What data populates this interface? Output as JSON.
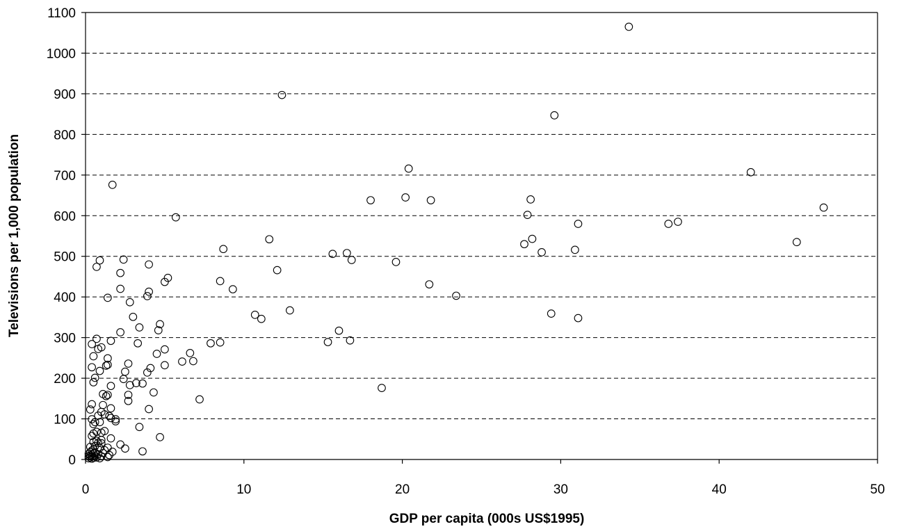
{
  "chart_data": {
    "type": "scatter",
    "xlabel": "GDP per capita (000s US$1995)",
    "ylabel": "Televisions per 1,000 population",
    "xlim": [
      0,
      50
    ],
    "ylim": [
      0,
      1100
    ],
    "xticks": [
      0,
      10,
      20,
      30,
      40,
      50
    ],
    "yticks": [
      0,
      100,
      200,
      300,
      400,
      500,
      600,
      700,
      800,
      900,
      1000,
      1100
    ],
    "grid": "horizontal dashed",
    "marker": "open circle",
    "points": [
      [
        34.3,
        1065
      ],
      [
        12.4,
        897
      ],
      [
        29.6,
        847
      ],
      [
        20.4,
        716
      ],
      [
        42.0,
        707
      ],
      [
        1.7,
        676
      ],
      [
        20.2,
        645
      ],
      [
        28.1,
        640
      ],
      [
        18.0,
        638
      ],
      [
        21.8,
        638
      ],
      [
        46.6,
        620
      ],
      [
        27.9,
        602
      ],
      [
        5.7,
        596
      ],
      [
        31.1,
        580
      ],
      [
        36.8,
        580
      ],
      [
        37.4,
        585
      ],
      [
        11.6,
        542
      ],
      [
        28.2,
        543
      ],
      [
        44.9,
        535
      ],
      [
        27.7,
        530
      ],
      [
        8.7,
        518
      ],
      [
        30.9,
        516
      ],
      [
        28.8,
        510
      ],
      [
        15.6,
        506
      ],
      [
        16.5,
        508
      ],
      [
        16.8,
        491
      ],
      [
        19.6,
        486
      ],
      [
        0.9,
        490
      ],
      [
        2.4,
        492
      ],
      [
        0.7,
        474
      ],
      [
        4.0,
        480
      ],
      [
        12.1,
        466
      ],
      [
        2.2,
        459
      ],
      [
        5.2,
        447
      ],
      [
        5.0,
        437
      ],
      [
        8.5,
        439
      ],
      [
        21.7,
        431
      ],
      [
        2.2,
        420
      ],
      [
        9.3,
        419
      ],
      [
        4.0,
        413
      ],
      [
        3.9,
        402
      ],
      [
        23.4,
        403
      ],
      [
        1.4,
        398
      ],
      [
        2.8,
        387
      ],
      [
        12.9,
        367
      ],
      [
        10.7,
        356
      ],
      [
        11.1,
        346
      ],
      [
        29.4,
        359
      ],
      [
        31.1,
        348
      ],
      [
        3.0,
        351
      ],
      [
        4.7,
        333
      ],
      [
        3.4,
        325
      ],
      [
        16.0,
        317
      ],
      [
        4.6,
        318
      ],
      [
        2.2,
        313
      ],
      [
        0.7,
        297
      ],
      [
        1.6,
        292
      ],
      [
        16.7,
        293
      ],
      [
        15.3,
        289
      ],
      [
        7.9,
        286
      ],
      [
        8.5,
        288
      ],
      [
        3.3,
        286
      ],
      [
        0.4,
        284
      ],
      [
        1.0,
        276
      ],
      [
        5.0,
        271
      ],
      [
        0.8,
        272
      ],
      [
        6.6,
        262
      ],
      [
        4.5,
        260
      ],
      [
        0.5,
        254
      ],
      [
        1.4,
        249
      ],
      [
        6.1,
        241
      ],
      [
        6.8,
        242
      ],
      [
        2.7,
        236
      ],
      [
        1.3,
        231
      ],
      [
        1.4,
        233
      ],
      [
        5.0,
        232
      ],
      [
        0.4,
        227
      ],
      [
        4.1,
        225
      ],
      [
        0.9,
        218
      ],
      [
        2.5,
        216
      ],
      [
        3.9,
        214
      ],
      [
        0.6,
        201
      ],
      [
        2.4,
        198
      ],
      [
        0.5,
        190
      ],
      [
        3.2,
        188
      ],
      [
        3.6,
        187
      ],
      [
        1.6,
        181
      ],
      [
        2.8,
        183
      ],
      [
        18.7,
        176
      ],
      [
        4.3,
        165
      ],
      [
        1.1,
        161
      ],
      [
        1.4,
        159
      ],
      [
        1.3,
        156
      ],
      [
        2.7,
        159
      ],
      [
        7.2,
        148
      ],
      [
        2.7,
        144
      ],
      [
        0.4,
        136
      ],
      [
        1.1,
        134
      ],
      [
        1.6,
        126
      ],
      [
        4.0,
        124
      ],
      [
        0.3,
        123
      ],
      [
        1.0,
        117
      ],
      [
        1.2,
        111
      ],
      [
        0.8,
        108
      ],
      [
        1.5,
        107
      ],
      [
        1.6,
        102
      ],
      [
        0.4,
        99
      ],
      [
        1.9,
        99
      ],
      [
        1.9,
        94
      ],
      [
        0.6,
        92
      ],
      [
        0.9,
        92
      ],
      [
        0.5,
        87
      ],
      [
        3.4,
        80
      ],
      [
        1.2,
        70
      ],
      [
        0.7,
        68
      ],
      [
        1.0,
        66
      ],
      [
        0.5,
        64
      ],
      [
        0.4,
        58
      ],
      [
        4.7,
        55
      ],
      [
        1.6,
        52
      ],
      [
        1.0,
        48
      ],
      [
        0.7,
        46
      ],
      [
        0.5,
        43
      ],
      [
        0.8,
        41
      ],
      [
        1.0,
        40
      ],
      [
        2.2,
        37
      ],
      [
        0.6,
        33
      ],
      [
        0.3,
        31
      ],
      [
        1.4,
        29
      ],
      [
        0.9,
        28
      ],
      [
        2.5,
        27
      ],
      [
        0.5,
        25
      ],
      [
        1.2,
        23
      ],
      [
        0.4,
        22
      ],
      [
        3.6,
        20
      ],
      [
        1.7,
        19
      ],
      [
        0.3,
        18
      ],
      [
        0.6,
        17
      ],
      [
        1.1,
        16
      ],
      [
        0.5,
        15
      ],
      [
        0.2,
        14
      ],
      [
        0.8,
        13
      ],
      [
        0.4,
        12
      ],
      [
        1.5,
        11
      ],
      [
        0.3,
        10
      ],
      [
        0.6,
        9
      ],
      [
        0.2,
        8
      ],
      [
        1.0,
        8
      ],
      [
        0.4,
        7
      ],
      [
        1.4,
        6
      ],
      [
        0.3,
        5
      ],
      [
        0.7,
        5
      ],
      [
        0.5,
        4
      ],
      [
        0.2,
        3
      ],
      [
        0.9,
        3
      ],
      [
        0.4,
        2
      ]
    ]
  }
}
